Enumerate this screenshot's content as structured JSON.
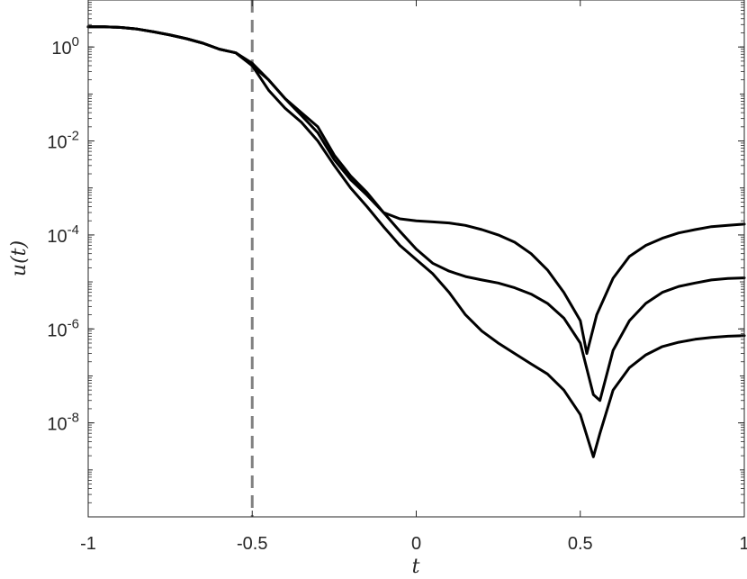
{
  "chart_data": {
    "type": "line",
    "xlabel": "t",
    "ylabel": "u(t)",
    "xlim": [
      -1,
      1
    ],
    "ylim": [
      1e-10,
      10
    ],
    "yscale": "log",
    "grid": false,
    "legend": "none",
    "x_ticks": [
      -1,
      -0.5,
      0,
      0.5,
      1
    ],
    "x_tick_labels": [
      "-1",
      "-0.5",
      "0",
      "0.5",
      "1"
    ],
    "y_ticks": [
      {
        "value": 1.0,
        "base": "10",
        "exp": "0"
      },
      {
        "value": 0.01,
        "base": "10",
        "exp": "-2"
      },
      {
        "value": 0.0001,
        "base": "10",
        "exp": "-4"
      },
      {
        "value": 1e-06,
        "base": "10",
        "exp": "-6"
      },
      {
        "value": 1e-08,
        "base": "10",
        "exp": "-8"
      }
    ],
    "reference_line": {
      "x": -0.5,
      "style": "dashed",
      "color": "#808080"
    },
    "line_color": "#000000",
    "series": [
      {
        "x": [
          -1,
          -0.95,
          -0.9,
          -0.85,
          -0.8,
          -0.75,
          -0.7,
          -0.65,
          -0.6,
          -0.55,
          -0.5,
          -0.45,
          -0.4,
          -0.35,
          -0.3,
          -0.25,
          -0.2,
          -0.15,
          -0.1,
          -0.05,
          0,
          0.05,
          0.1,
          0.15,
          0.2,
          0.25,
          0.3,
          0.35,
          0.4,
          0.45,
          0.5,
          0.52,
          0.55,
          0.6,
          0.65,
          0.7,
          0.75,
          0.8,
          0.85,
          0.9,
          0.95,
          1
        ],
        "y": [
          2.7,
          2.7,
          2.6,
          2.4,
          2.1,
          1.8,
          1.5,
          1.2,
          0.9,
          0.75,
          0.4,
          0.2,
          0.08,
          0.035,
          0.015,
          0.004,
          0.0015,
          0.0007,
          0.0003,
          0.00022,
          0.0002,
          0.00019,
          0.00018,
          0.00016,
          0.00013,
          0.0001,
          7e-05,
          4e-05,
          1.8e-05,
          6e-06,
          1.5e-06,
          3e-07,
          2e-06,
          1.2e-05,
          3.5e-05,
          6e-05,
          8.5e-05,
          0.00011,
          0.00013,
          0.00015,
          0.00016,
          0.00017
        ]
      },
      {
        "x": [
          -1,
          -0.95,
          -0.9,
          -0.85,
          -0.8,
          -0.75,
          -0.7,
          -0.65,
          -0.6,
          -0.55,
          -0.5,
          -0.45,
          -0.4,
          -0.35,
          -0.3,
          -0.25,
          -0.2,
          -0.15,
          -0.1,
          -0.05,
          0,
          0.05,
          0.1,
          0.15,
          0.2,
          0.25,
          0.3,
          0.35,
          0.4,
          0.45,
          0.5,
          0.54,
          0.56,
          0.6,
          0.65,
          0.7,
          0.75,
          0.8,
          0.85,
          0.9,
          0.95,
          1
        ],
        "y": [
          2.7,
          2.7,
          2.6,
          2.4,
          2.1,
          1.8,
          1.5,
          1.2,
          0.9,
          0.75,
          0.45,
          0.2,
          0.08,
          0.04,
          0.02,
          0.005,
          0.0018,
          0.0008,
          0.0003,
          0.00012,
          5e-05,
          2.5e-05,
          1.7e-05,
          1.3e-05,
          1.1e-05,
          9.5e-06,
          7.5e-06,
          5.5e-06,
          3.5e-06,
          1.7e-06,
          5e-07,
          4e-08,
          3e-08,
          3.5e-07,
          1.5e-06,
          3.5e-06,
          6e-06,
          8e-06,
          9.5e-06,
          1.1e-05,
          1.18e-05,
          1.22e-05
        ]
      },
      {
        "x": [
          -1,
          -0.95,
          -0.9,
          -0.85,
          -0.8,
          -0.75,
          -0.7,
          -0.65,
          -0.6,
          -0.55,
          -0.5,
          -0.45,
          -0.4,
          -0.35,
          -0.3,
          -0.25,
          -0.2,
          -0.15,
          -0.1,
          -0.05,
          0,
          0.05,
          0.1,
          0.15,
          0.2,
          0.25,
          0.3,
          0.35,
          0.4,
          0.45,
          0.5,
          0.54,
          0.56,
          0.6,
          0.65,
          0.7,
          0.75,
          0.8,
          0.85,
          0.9,
          0.95,
          1
        ],
        "y": [
          2.7,
          2.7,
          2.6,
          2.4,
          2.1,
          1.8,
          1.5,
          1.2,
          0.9,
          0.75,
          0.4,
          0.12,
          0.05,
          0.025,
          0.01,
          0.003,
          0.001,
          0.0004,
          0.00015,
          6e-05,
          3e-05,
          1.5e-05,
          6e-06,
          2e-06,
          9e-07,
          5e-07,
          3e-07,
          1.8e-07,
          1.1e-07,
          5e-08,
          1.5e-08,
          1.9e-09,
          6e-09,
          5e-08,
          1.5e-07,
          2.8e-07,
          4.2e-07,
          5.2e-07,
          6e-07,
          6.6e-07,
          7e-07,
          7.2e-07
        ]
      }
    ]
  }
}
